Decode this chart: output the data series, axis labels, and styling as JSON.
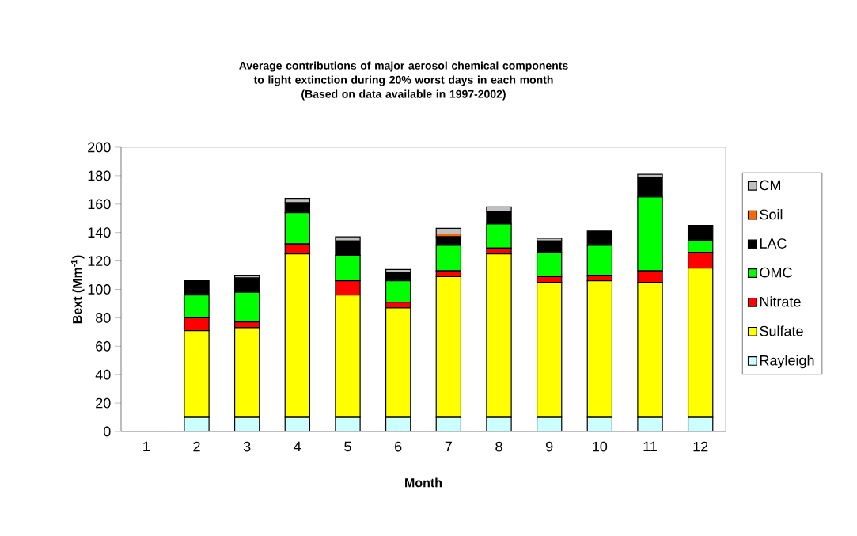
{
  "chart_data": {
    "type": "bar",
    "stacked": true,
    "title": "Average contributions of major aerosol chemical components to light extinction during 20% worst days in each month",
    "subtitle": "(Based on data available in 1997-2002)",
    "xlabel": "Month",
    "ylabel": "Bext (Mm$^{-1}$)",
    "categories": [
      "1",
      "2",
      "3",
      "4",
      "5",
      "6",
      "7",
      "8",
      "9",
      "10",
      "11",
      "12"
    ],
    "ylim": [
      0,
      200
    ],
    "yticks": [
      0,
      20,
      40,
      60,
      80,
      100,
      120,
      140,
      160,
      180,
      200
    ],
    "legend": "right",
    "grid": false,
    "series": [
      {
        "name": "Rayleigh",
        "color": "#ccffff",
        "values": [
          0,
          10,
          10,
          10,
          10,
          10,
          10,
          10,
          10,
          10,
          10,
          10
        ]
      },
      {
        "name": "Sulfate",
        "color": "#ffff00",
        "values": [
          0,
          61,
          63,
          115,
          86,
          77,
          99,
          115,
          95,
          96,
          95,
          105
        ]
      },
      {
        "name": "Nitrate",
        "color": "#ff0000",
        "values": [
          0,
          9,
          4,
          7,
          10,
          4,
          4,
          4,
          4,
          4,
          8,
          11
        ]
      },
      {
        "name": "OMC",
        "color": "#00ff00",
        "values": [
          0,
          16,
          21,
          22,
          18,
          15,
          18,
          17,
          17,
          21,
          52,
          8
        ]
      },
      {
        "name": "LAC",
        "color": "#000000",
        "values": [
          0,
          10,
          10,
          7,
          10,
          6,
          6,
          9,
          8,
          10,
          14,
          11
        ]
      },
      {
        "name": "Soil",
        "color": "#ff6600",
        "values": [
          0,
          0,
          0,
          0,
          0,
          0,
          2,
          0,
          0,
          0,
          0,
          0
        ]
      },
      {
        "name": "CM",
        "color": "#c0c0c0",
        "values": [
          0,
          0,
          2,
          3,
          3,
          2,
          4,
          3,
          2,
          0,
          2,
          0
        ]
      }
    ]
  }
}
